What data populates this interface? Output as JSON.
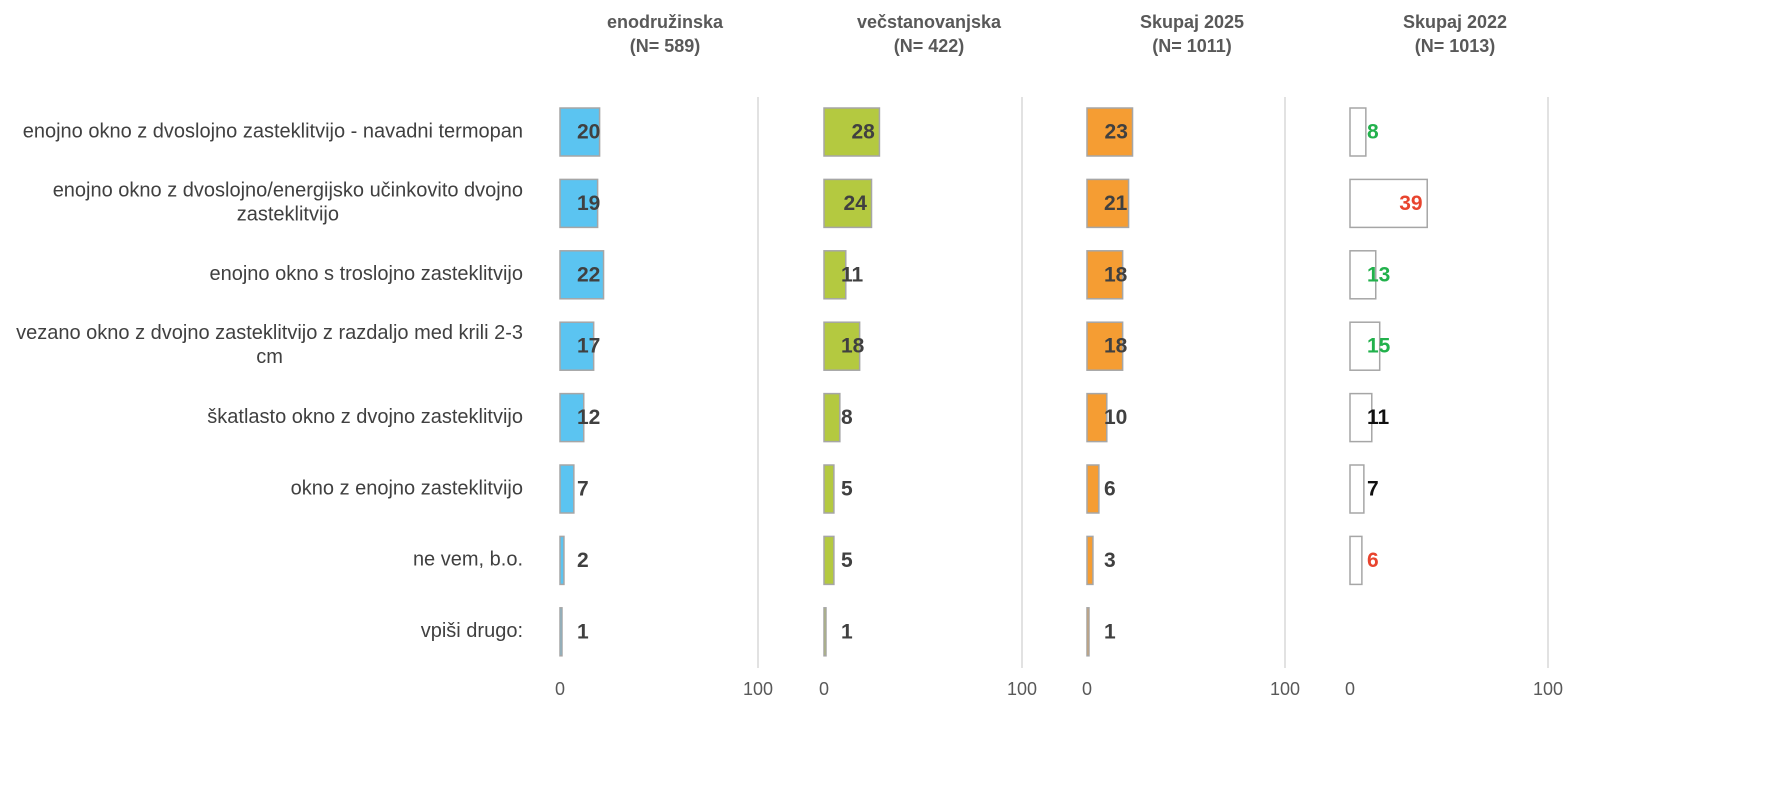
{
  "chart_data": [
    {
      "type": "bar",
      "title": "enodružinska",
      "subtitle": "(N= 589)",
      "categories": [
        "enojno okno z dvoslojno zasteklitvijo - navadni termopan",
        "enojno okno z dvoslojno/energijsko učinkovito dvojno zasteklitvijo",
        "enojno okno s troslojno zasteklitvijo",
        "vezano okno z dvojno zasteklitvijo z razdaljo med krili 2-3 cm",
        "škatlasto okno z dvojno zasteklitvijo",
        "okno z enojno zasteklitvijo",
        "ne vem, b.o.",
        "vpiši drugo:"
      ],
      "values": [
        20,
        19,
        22,
        17,
        12,
        7,
        2,
        1
      ],
      "color": "#5bc4f1",
      "label_color": "#404040",
      "xlim": [
        0,
        100
      ],
      "xticks": [
        0,
        100
      ]
    },
    {
      "type": "bar",
      "title": "večstanovanjska",
      "subtitle": "(N= 422)",
      "values": [
        28,
        24,
        11,
        18,
        8,
        5,
        5,
        1
      ],
      "color": "#b4c940",
      "label_color": "#404040",
      "xlim": [
        0,
        100
      ],
      "xticks": [
        0,
        100
      ]
    },
    {
      "type": "bar",
      "title": "Skupaj 2025",
      "subtitle": "(N= 1011)",
      "values": [
        23,
        21,
        18,
        18,
        10,
        6,
        3,
        1
      ],
      "color": "#f59d33",
      "label_color": "#404040",
      "xlim": [
        0,
        100
      ],
      "xticks": [
        0,
        100
      ]
    },
    {
      "type": "bar",
      "title": "Skupaj 2022",
      "subtitle": "(N= 1013)",
      "values": [
        8,
        39,
        13,
        15,
        11,
        7,
        6,
        null
      ],
      "color": "#ffffff",
      "label_colors": [
        "#22b14c",
        "#e8442e",
        "#22b14c",
        "#22b14c",
        "#111111",
        "#111111",
        "#e8442e",
        null
      ],
      "xlim": [
        0,
        100
      ],
      "xticks": [
        0,
        100
      ]
    }
  ]
}
